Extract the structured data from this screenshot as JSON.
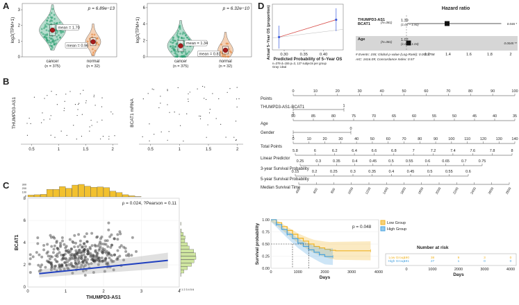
{
  "panels": [
    "A",
    "B",
    "C",
    "D"
  ],
  "chart_data": [
    {
      "type": "violin",
      "id": "A-left",
      "ylabel": "log2(TPM+1)",
      "pvalue": "p = 6.89e−13",
      "groups": [
        {
          "name": "cancer",
          "n": "(n = 375)",
          "mean": 1.7,
          "mean_label": "mean = 1.70",
          "color": "#2a9d6f"
        },
        {
          "name": "normal",
          "n": "(n = 32)",
          "mean": 0.96,
          "mean_label": "mean = 0.96",
          "color": "#e07a2c"
        }
      ],
      "yticks": [
        "0",
        "1",
        "2",
        "3"
      ],
      "ylim": [
        0,
        3.4
      ]
    },
    {
      "type": "violin",
      "id": "A-right",
      "ylabel": "log2(TPM+1)",
      "pvalue": "p = 6.32e−10",
      "groups": [
        {
          "name": "cancer",
          "n": "(n = 375)",
          "mean": 1.34,
          "mean_label": "mean = 1.34",
          "color": "#2a9d6f"
        },
        {
          "name": "normal",
          "n": "(n = 32)",
          "mean": 0.81,
          "mean_label": "mean = 0.81",
          "color": "#e07a2c"
        }
      ],
      "yticks": [
        "0",
        "2",
        "4",
        "6"
      ],
      "ylim": [
        0,
        6.5
      ]
    },
    {
      "type": "scatter",
      "id": "B-left",
      "ylabel": "THUMPD3-AS1",
      "xticks": [
        "0.5",
        "1",
        "1.5",
        "2"
      ],
      "xlim": [
        0.3,
        2.1
      ],
      "ylim": [
        0,
        6
      ]
    },
    {
      "type": "scatter",
      "id": "B-right",
      "ylabel": "BCAT1 mRNA",
      "xticks": [
        "0.5",
        "1",
        "1.5",
        "2"
      ],
      "xlim": [
        0.3,
        2.1
      ],
      "ylim": [
        0,
        6
      ]
    },
    {
      "type": "scatter",
      "id": "C",
      "title": "ρ = 0.024, ?Pearson = 0.11",
      "xlabel": "THUMPD3-AS1",
      "ylabel": "BCAT1",
      "xticks": [
        "0",
        "1",
        "2",
        "3",
        "4"
      ],
      "yticks": [
        "0",
        "2",
        "4",
        "6",
        "8"
      ],
      "xlim": [
        0,
        4
      ],
      "ylim": [
        0,
        8
      ],
      "fit": {
        "intercept": 1.1,
        "slope": 0.35
      },
      "top_hist_ticks": [
        "0",
        "100",
        "200",
        "300"
      ],
      "right_hist_ticks": "0 1 2 3 4 5 6"
    },
    {
      "type": "calibration",
      "id": "D-calibration",
      "xlabel": "Predicted Probability of 5−Year OS",
      "ylabel": "Actual 5−Year OS (proportion)",
      "xticks": [
        "0.30",
        "0.35",
        "0.40"
      ],
      "xlim": [
        0.27,
        0.45
      ],
      "ylim": [
        0,
        1
      ],
      "points": [
        {
          "x": 0.287,
          "y": 0.28
        },
        {
          "x": 0.432,
          "y": 0.66
        }
      ],
      "note_lines": [
        "n=379 d=155 p=3, 127 subjects per group",
        "Gray: ideal"
      ]
    },
    {
      "type": "forest",
      "id": "D-forest",
      "title": "Hazard ratio",
      "rows": [
        {
          "var": "THUMPD3-AS1",
          "var2": "BCAT1",
          "n": "(N=381)",
          "hr": 1.39,
          "ci": "(1.01 − 1.91)",
          "p": "0.046 *",
          "lo": 1.01,
          "hi": 1.91
        },
        {
          "var": "Age",
          "var2": "",
          "n": "(N=381)",
          "hr": 1.02,
          "ci": "(1.01 − 1.04)",
          "p": "0.0045 **",
          "lo": 1.01,
          "hi": 1.04
        }
      ],
      "axis_ticks": [
        "1.2",
        "1.4",
        "1.6",
        "1.8",
        "2"
      ],
      "footer_lines": [
        "# Events: 155; Global p-value (Log-Rank): 0.0021758",
        "AIC: 1616.09; Concordance Index: 0.57"
      ]
    },
    {
      "type": "nomogram",
      "id": "D-nomogram",
      "rows": [
        {
          "label": "Points",
          "ticks": [
            "0",
            "10",
            "20",
            "30",
            "40",
            "50",
            "60",
            "70",
            "80",
            "90",
            "100"
          ]
        },
        {
          "label": "THUMPD3-AS1-BCAT1",
          "ticks_top": [
            "1"
          ],
          "ticks_bottom": [
            "2"
          ]
        },
        {
          "label": "Age",
          "ticks": [
            "90",
            "85",
            "80",
            "75",
            "70",
            "65",
            "60",
            "55",
            "50",
            "45",
            "40",
            "35"
          ]
        },
        {
          "label": "Gender",
          "ticks_top": [
            "0"
          ],
          "ticks_bottom": [
            "1"
          ]
        },
        {
          "label": "Total Points",
          "ticks": [
            "0",
            "10",
            "20",
            "30",
            "40",
            "50",
            "60",
            "70",
            "80",
            "90",
            "100",
            "110",
            "120",
            "130",
            "140"
          ]
        },
        {
          "label": "Linear Predictor",
          "ticks": [
            "5.8",
            "6",
            "6.2",
            "6.4",
            "6.6",
            "6.8",
            "7",
            "7.2",
            "7.4",
            "7.6",
            "7.8",
            "8"
          ]
        },
        {
          "label": "3-year Survival Probability",
          "ticks": [
            "0.25",
            "0.3",
            "0.35",
            "0.4",
            "0.45",
            "0.5",
            "0.55",
            "0.6",
            "0.65",
            "0.7",
            "0.75"
          ]
        },
        {
          "label": "5-year Survival Probability",
          "ticks": [
            "0.15",
            "0.2",
            "0.25",
            "0.3",
            "0.35",
            "0.4",
            "0.45",
            "0.5",
            "0.55",
            "0.6"
          ]
        },
        {
          "label": "Median Survival Time",
          "ticks": [
            "400",
            "600",
            "800",
            "1000",
            "1200",
            "1400",
            "1600",
            "1800",
            "2000",
            "2200",
            "2400",
            "2600",
            "2800"
          ]
        }
      ]
    },
    {
      "type": "kaplan-meier",
      "id": "D-km",
      "xlabel": "Days",
      "ylabel": "Survival probability",
      "pvalue": "p = 0.048",
      "xticks": [
        "0",
        "1000",
        "2000",
        "3000",
        "4000"
      ],
      "yticks": [
        "0.00",
        "0.25",
        "0.50",
        "0.75",
        "1.00"
      ],
      "xlim": [
        0,
        4000
      ],
      "ylim": [
        0,
        1
      ],
      "series": [
        {
          "name": "Low Group",
          "color": "#f0b323",
          "points": [
            [
              0,
              1
            ],
            [
              200,
              0.94
            ],
            [
              400,
              0.86
            ],
            [
              600,
              0.78
            ],
            [
              800,
              0.7
            ],
            [
              1000,
              0.62
            ],
            [
              1200,
              0.56
            ],
            [
              1400,
              0.5
            ],
            [
              1600,
              0.45
            ],
            [
              1800,
              0.42
            ],
            [
              2000,
              0.39
            ],
            [
              2200,
              0.37
            ],
            [
              2400,
              0.36
            ],
            [
              3700,
              0.36
            ]
          ]
        },
        {
          "name": "High Group",
          "color": "#4aa3df",
          "points": [
            [
              0,
              1
            ],
            [
              200,
              0.9
            ],
            [
              400,
              0.8
            ],
            [
              600,
              0.7
            ],
            [
              800,
              0.61
            ],
            [
              1000,
              0.52
            ],
            [
              1200,
              0.45
            ],
            [
              1400,
              0.38
            ],
            [
              1600,
              0.33
            ],
            [
              1800,
              0.28
            ],
            [
              2000,
              0.24
            ],
            [
              2300,
              0.24
            ]
          ]
        }
      ],
      "legend": [
        "Low Group",
        "High Group"
      ],
      "risk_table": {
        "title": "Number at risk",
        "xlabel": "Days",
        "xticks": [
          "0",
          "1000",
          "2000",
          "3000",
          "4000"
        ],
        "rows": [
          {
            "name": "Low Group",
            "values": [
              "190",
              "38",
              "9",
              "3",
              "0"
            ]
          },
          {
            "name": "High Group",
            "values": [
              "191",
              "27",
              "1",
              "0",
              "0"
            ]
          }
        ]
      }
    }
  ]
}
